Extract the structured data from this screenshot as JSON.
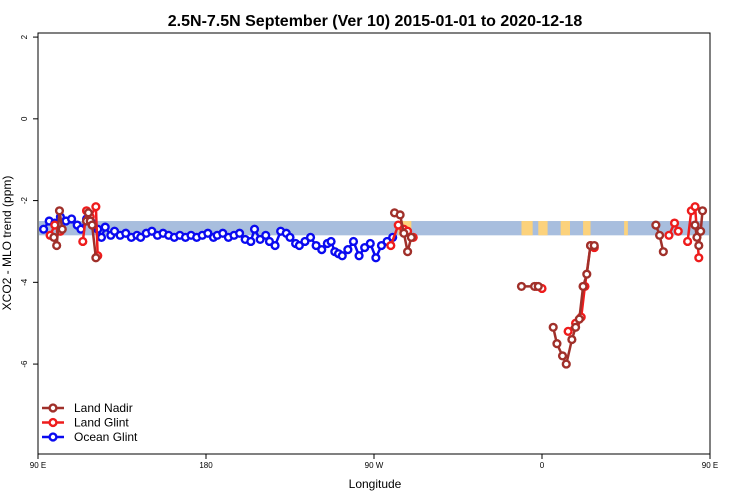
{
  "chart_data": {
    "type": "line",
    "title": "2.5N-7.5N September (Ver 10)   2015-01-01 to 2020-12-18",
    "xlabel": "Longitude",
    "ylabel": "XCO2 - MLO trend (ppm)",
    "xlim": [
      90,
      450
    ],
    "ylim": [
      -8.2,
      2.1
    ],
    "x_ticks": [
      {
        "value": 90,
        "label": "90 E"
      },
      {
        "value": 180,
        "label": "180"
      },
      {
        "value": 270,
        "label": "90 W"
      },
      {
        "value": 360,
        "label": "0"
      },
      {
        "value": 450,
        "label": "90 E"
      }
    ],
    "y_ticks": [
      {
        "value": 2,
        "label": "2"
      },
      {
        "value": 0,
        "label": "0"
      },
      {
        "value": -2,
        "label": "-2"
      },
      {
        "value": -4,
        "label": "-4"
      },
      {
        "value": -6,
        "label": "-6"
      }
    ],
    "grid": false,
    "legend_position": "bottom-left",
    "land_band": {
      "y_range": [
        -2.85,
        -2.5
      ],
      "ocean_color": "#a8bede",
      "land_color": "#fcd27c",
      "land_segments": [
        [
          283,
          290
        ],
        [
          349,
          355
        ],
        [
          358,
          363
        ],
        [
          370,
          375
        ],
        [
          382,
          386
        ],
        [
          404,
          406
        ]
      ]
    },
    "series": [
      {
        "name": "Land Nadir",
        "color": "#a0302a",
        "segments": [
          [
            [
              98.5,
              -2.9
            ],
            [
              100,
              -3.1
            ],
            [
              101.5,
              -2.25
            ],
            [
              103,
              -2.7
            ]
          ],
          [
            [
              116,
              -2.5
            ],
            [
              117,
              -2.3
            ],
            [
              118,
              -2.5
            ],
            [
              119,
              -2.6
            ],
            [
              121,
              -3.4
            ]
          ],
          [
            [
              281,
              -2.3
            ],
            [
              284,
              -2.35
            ],
            [
              286,
              -2.8
            ],
            [
              288,
              -3.25
            ],
            [
              290,
              -2.9
            ]
          ],
          [
            [
              349,
              -4.1
            ],
            [
              356,
              -4.1
            ],
            [
              358,
              -4.1
            ]
          ],
          [
            [
              366,
              -5.1
            ],
            [
              368,
              -5.5
            ],
            [
              371,
              -5.8
            ],
            [
              373,
              -6.0
            ],
            [
              376,
              -5.4
            ],
            [
              378,
              -5.1
            ],
            [
              380,
              -4.9
            ],
            [
              382,
              -4.1
            ],
            [
              384,
              -3.8
            ],
            [
              386,
              -3.1
            ],
            [
              388,
              -3.1
            ]
          ],
          [
            [
              421,
              -2.6
            ],
            [
              423,
              -2.85
            ],
            [
              425,
              -3.25
            ]
          ],
          [
            [
              442,
              -2.6
            ],
            [
              443,
              -2.9
            ],
            [
              444,
              -3.1
            ],
            [
              445,
              -2.75
            ],
            [
              446,
              -2.25
            ]
          ]
        ]
      },
      {
        "name": "Land Glint",
        "color": "#ee1c1c",
        "segments": [
          [
            [
              96.5,
              -2.85
            ],
            [
              99,
              -2.6
            ],
            [
              102,
              -2.75
            ]
          ],
          [
            [
              114,
              -3.0
            ],
            [
              116,
              -2.25
            ],
            [
              118,
              -2.4
            ],
            [
              121,
              -2.15
            ],
            [
              122,
              -3.35
            ]
          ],
          [
            [
              279,
              -3.1
            ],
            [
              283,
              -2.6
            ],
            [
              286,
              -2.7
            ],
            [
              288,
              -2.75
            ],
            [
              291,
              -2.9
            ]
          ],
          [
            [
              357,
              -4.1
            ],
            [
              360,
              -4.15
            ]
          ],
          [
            [
              374,
              -5.2
            ],
            [
              378,
              -5.0
            ],
            [
              381,
              -4.85
            ],
            [
              383,
              -4.1
            ],
            [
              386,
              -3.1
            ],
            [
              388,
              -3.15
            ]
          ],
          [
            [
              428,
              -2.85
            ],
            [
              431,
              -2.55
            ],
            [
              433,
              -2.75
            ]
          ],
          [
            [
              438,
              -3.0
            ],
            [
              440,
              -2.25
            ],
            [
              442,
              -2.15
            ],
            [
              444,
              -3.4
            ]
          ]
        ]
      },
      {
        "name": "Ocean Glint",
        "color": "#0a0af0",
        "segments": [
          [
            [
              93,
              -2.7
            ],
            [
              96,
              -2.5
            ],
            [
              99,
              -2.55
            ],
            [
              102,
              -2.4
            ],
            [
              105,
              -2.5
            ],
            [
              108,
              -2.45
            ],
            [
              111,
              -2.6
            ],
            [
              113,
              -2.7
            ],
            [
              116,
              -2.45
            ],
            [
              119,
              -2.55
            ],
            [
              122,
              -2.7
            ],
            [
              124,
              -2.9
            ],
            [
              126,
              -2.65
            ],
            [
              129,
              -2.85
            ],
            [
              131,
              -2.75
            ],
            [
              134,
              -2.85
            ],
            [
              137,
              -2.8
            ],
            [
              140,
              -2.9
            ],
            [
              143,
              -2.85
            ],
            [
              145,
              -2.9
            ],
            [
              148,
              -2.8
            ],
            [
              151,
              -2.75
            ],
            [
              154,
              -2.85
            ],
            [
              157,
              -2.8
            ],
            [
              160,
              -2.85
            ],
            [
              163,
              -2.9
            ],
            [
              166,
              -2.85
            ],
            [
              169,
              -2.9
            ],
            [
              172,
              -2.85
            ],
            [
              175,
              -2.9
            ],
            [
              178,
              -2.85
            ],
            [
              181,
              -2.8
            ],
            [
              184,
              -2.9
            ],
            [
              186,
              -2.85
            ],
            [
              189,
              -2.8
            ],
            [
              192,
              -2.9
            ],
            [
              195,
              -2.85
            ],
            [
              198,
              -2.8
            ],
            [
              201,
              -2.95
            ],
            [
              204,
              -3.0
            ],
            [
              206,
              -2.7
            ],
            [
              209,
              -2.95
            ],
            [
              212,
              -2.85
            ],
            [
              214,
              -3.0
            ],
            [
              217,
              -3.1
            ],
            [
              220,
              -2.75
            ],
            [
              223,
              -2.8
            ],
            [
              225,
              -2.9
            ],
            [
              228,
              -3.05
            ],
            [
              230,
              -3.1
            ],
            [
              233,
              -3.0
            ],
            [
              236,
              -2.9
            ],
            [
              239,
              -3.1
            ],
            [
              242,
              -3.2
            ],
            [
              245,
              -3.05
            ],
            [
              247,
              -3.0
            ],
            [
              249,
              -3.25
            ],
            [
              251,
              -3.3
            ],
            [
              253,
              -3.35
            ],
            [
              256,
              -3.2
            ],
            [
              259,
              -3.0
            ],
            [
              262,
              -3.35
            ],
            [
              265,
              -3.15
            ],
            [
              268,
              -3.05
            ],
            [
              271,
              -3.4
            ],
            [
              274,
              -3.1
            ],
            [
              277,
              -3.0
            ],
            [
              280,
              -2.9
            ]
          ]
        ]
      }
    ],
    "legend": [
      {
        "name": "Land Nadir",
        "color": "#a0302a"
      },
      {
        "name": "Land Glint",
        "color": "#ee1c1c"
      },
      {
        "name": "Ocean Glint",
        "color": "#0a0af0"
      }
    ]
  }
}
